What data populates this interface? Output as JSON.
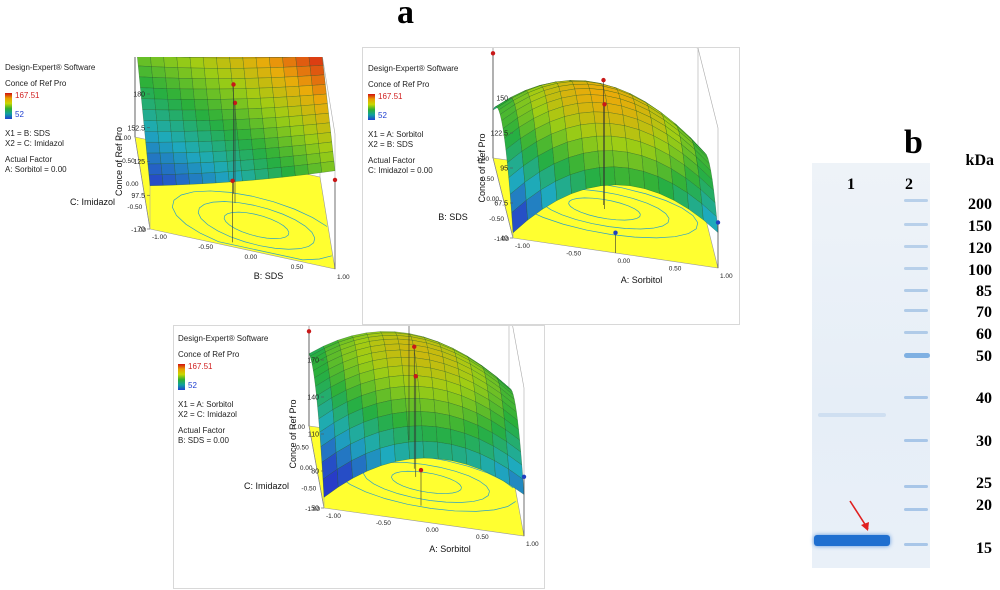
{
  "figure": {
    "panel_a": "a",
    "panel_b": "b"
  },
  "plot1": {
    "software": "Design-Expert® Software",
    "response": "Conce of Ref Pro",
    "legend_max": "167.51",
    "legend_min": "52",
    "x1": "X1 = B: SDS",
    "x2": "X2 = C: Imidazol",
    "actual_factor_title": "Actual Factor",
    "actual_factor": "A: Sorbitol = 0.00",
    "z_label": "Conce of Ref Pro",
    "z_ticks": [
      "180",
      "152.5",
      "125",
      "97.5",
      "70"
    ],
    "left_axis_label": "C: Imidazol",
    "right_axis_label": "B: SDS",
    "left_ticks": [
      "1.00",
      "0.50",
      "0.00",
      "-0.50",
      "-1.00"
    ],
    "right_ticks": [
      "-1.00",
      "-0.50",
      "0.00",
      "0.50",
      "1.00"
    ]
  },
  "plot2": {
    "software": "Design-Expert® Software",
    "response": "Conce of Ref Pro",
    "legend_max": "167.51",
    "legend_min": "52",
    "x1": "X1 = A: Sorbitol",
    "x2": "X2 = B: SDS",
    "actual_factor_title": "Actual Factor",
    "actual_factor": "C: Imidazol = 0.00",
    "z_label": "Conce of Ref Pro",
    "z_ticks": [
      "150",
      "122.5",
      "95",
      "67.5",
      "40"
    ],
    "left_axis_label": "B: SDS",
    "right_axis_label": "A: Sorbitol",
    "left_ticks": [
      "1.00",
      "0.50",
      "0.00",
      "-0.50",
      "-1.00"
    ],
    "right_ticks": [
      "-1.00",
      "-0.50",
      "0.00",
      "0.50",
      "1.00"
    ]
  },
  "plot3": {
    "software": "Design-Expert® Software",
    "response": "Conce of Ref Pro",
    "legend_max": "167.51",
    "legend_min": "52",
    "x1": "X1 = A: Sorbitol",
    "x2": "X2 = C: Imidazol",
    "actual_factor_title": "Actual Factor",
    "actual_factor": "B: SDS = 0.00",
    "z_label": "Conce of Ref Pro",
    "z_ticks": [
      "170",
      "140",
      "110",
      "80",
      "50"
    ],
    "left_axis_label": "C: Imidazol",
    "right_axis_label": "A: Sorbitol",
    "left_ticks": [
      "1.00",
      "0.50",
      "0.00",
      "-0.50",
      "-1.00"
    ],
    "right_ticks": [
      "-1.00",
      "-0.50",
      "0.00",
      "0.50",
      "1.00"
    ]
  },
  "gel": {
    "lane_labels": [
      "1",
      "2"
    ],
    "unit": "kDa",
    "markers": [
      "200",
      "150",
      "120",
      "100",
      "85",
      "70",
      "60",
      "50",
      "40",
      "30",
      "25",
      "20",
      "15"
    ]
  }
}
